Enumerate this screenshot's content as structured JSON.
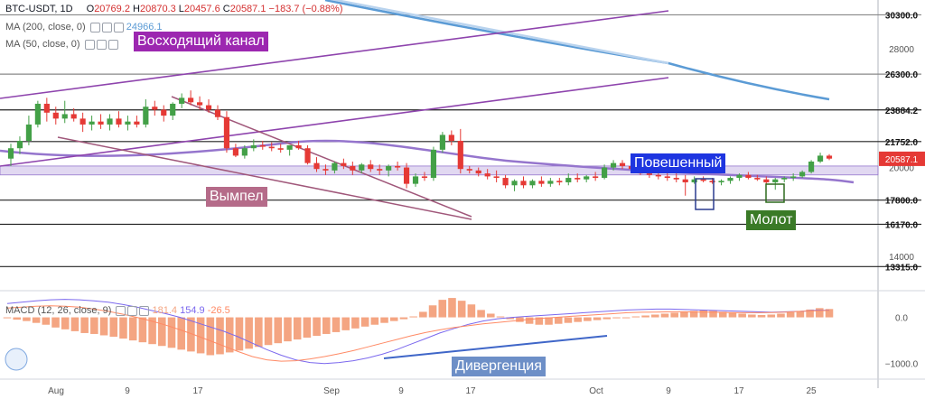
{
  "header": {
    "symbol": "BTC-USDT, 1D",
    "open_label": "O",
    "open": "20769.2",
    "high_label": "H",
    "high": "20870.3",
    "low_label": "L",
    "low": "20457.6",
    "close_label": "C",
    "close": "20587.1",
    "change": "−183.7 (−0.88%)",
    "ma200_label": "MA (200, close, 0)",
    "ma200_value": "24966.1",
    "ma50_label": "MA (50, close, 0)",
    "macd_label": "MACD (12, 26, close, 9)",
    "macd_values": [
      "181.4",
      "154.9",
      "-26.5"
    ]
  },
  "annotations": {
    "channel": "Восходящий канал",
    "pennant": "Вымпел",
    "hanging_man": "Повешенный",
    "hammer": "Молот",
    "divergence": "Дивергенция"
  },
  "colors": {
    "up": "#43a047",
    "down": "#e53935",
    "ma200": "#5b9bd5",
    "ma50": "#9575cd",
    "channel": "#8e44ad",
    "pennant": "#a0577a",
    "macd_hist": "#f4a582",
    "macd_line": "#7b68ee",
    "signal_line": "#ff8a65"
  },
  "chart_data": {
    "type": "candlestick",
    "price_axis": {
      "ticks": [
        14000,
        17800,
        20000,
        26300,
        28000,
        30300
      ],
      "ylim": [
        12300,
        31300
      ]
    },
    "levels": [
      {
        "price": 30300,
        "label": "30300.0"
      },
      {
        "price": 26300,
        "label": "26300.0"
      },
      {
        "price": 23884.2,
        "label": "23884.2"
      },
      {
        "price": 21752,
        "label": "21752.0"
      },
      {
        "price": 17800,
        "label": "17800.0"
      },
      {
        "price": 16170,
        "label": "16170.0"
      },
      {
        "price": 13315,
        "label": "13315.0"
      }
    ],
    "current_price": "20587.1",
    "x_labels": [
      "Aug",
      "9",
      "17",
      "Sep",
      "9",
      "17",
      "Oct",
      "9",
      "17",
      "25"
    ],
    "macd_axis": {
      "ticks": [
        "0.0",
        "−1000.0"
      ],
      "ylim": [
        -1300,
        500
      ]
    },
    "candles": [
      [
        20600,
        21600,
        20100,
        21300
      ],
      [
        21300,
        22100,
        20900,
        21800
      ],
      [
        21800,
        23500,
        21500,
        22900
      ],
      [
        22900,
        24500,
        22700,
        24300
      ],
      [
        24300,
        24700,
        23100,
        23700
      ],
      [
        23700,
        24100,
        22900,
        23300
      ],
      [
        23300,
        24500,
        23000,
        23600
      ],
      [
        23600,
        24000,
        23100,
        23300
      ],
      [
        23300,
        23700,
        22400,
        22900
      ],
      [
        22900,
        23500,
        22500,
        23100
      ],
      [
        23100,
        23600,
        22600,
        22900
      ],
      [
        22900,
        23600,
        22500,
        23300
      ],
      [
        23300,
        23800,
        22700,
        22900
      ],
      [
        22900,
        23500,
        22500,
        23100
      ],
      [
        23100,
        23500,
        22700,
        22900
      ],
      [
        22900,
        24600,
        22700,
        24100
      ],
      [
        24100,
        24500,
        23500,
        23900
      ],
      [
        23900,
        24200,
        23100,
        23500
      ],
      [
        23500,
        24400,
        23200,
        24300
      ],
      [
        24300,
        25000,
        24000,
        24700
      ],
      [
        24700,
        25200,
        24200,
        24400
      ],
      [
        24400,
        24800,
        23900,
        24200
      ],
      [
        24200,
        24600,
        23700,
        23900
      ],
      [
        23900,
        24200,
        23200,
        23400
      ],
      [
        23400,
        23800,
        21000,
        21300
      ],
      [
        21300,
        21600,
        20700,
        20800
      ],
      [
        20800,
        21500,
        20600,
        21300
      ],
      [
        21300,
        21900,
        21100,
        21500
      ],
      [
        21500,
        21800,
        21200,
        21400
      ],
      [
        21400,
        21700,
        21100,
        21300
      ],
      [
        21300,
        21600,
        21000,
        21200
      ],
      [
        21200,
        21500,
        20800,
        21500
      ],
      [
        21500,
        21800,
        21200,
        21300
      ],
      [
        21300,
        21500,
        20200,
        20300
      ],
      [
        20300,
        20700,
        19700,
        19900
      ],
      [
        19900,
        20200,
        19500,
        19800
      ],
      [
        19800,
        20400,
        19600,
        20300
      ],
      [
        20300,
        20600,
        19900,
        20100
      ],
      [
        20100,
        20400,
        19500,
        19800
      ],
      [
        19800,
        20300,
        19600,
        20200
      ],
      [
        20200,
        20500,
        19700,
        19900
      ],
      [
        19900,
        20200,
        19500,
        19800
      ],
      [
        19800,
        20200,
        19400,
        20100
      ],
      [
        20100,
        20400,
        19800,
        20000
      ],
      [
        20000,
        20300,
        18600,
        18900
      ],
      [
        18900,
        19600,
        18700,
        19400
      ],
      [
        19400,
        19700,
        19100,
        19300
      ],
      [
        19300,
        21400,
        19100,
        21200
      ],
      [
        21200,
        22400,
        21000,
        22200
      ],
      [
        22200,
        22500,
        21500,
        21800
      ],
      [
        21800,
        22600,
        19600,
        19900
      ],
      [
        19900,
        20100,
        19600,
        19800
      ],
      [
        19800,
        20000,
        19400,
        19600
      ],
      [
        19600,
        19900,
        19200,
        19400
      ],
      [
        19400,
        19800,
        19000,
        19300
      ],
      [
        19300,
        19500,
        18600,
        18800
      ],
      [
        18800,
        19200,
        18400,
        19100
      ],
      [
        19100,
        19400,
        18600,
        18800
      ],
      [
        18800,
        19200,
        18600,
        19100
      ],
      [
        19100,
        19400,
        18700,
        18900
      ],
      [
        18900,
        19300,
        18700,
        19100
      ],
      [
        19100,
        19300,
        18800,
        19000
      ],
      [
        19000,
        19600,
        18800,
        19300
      ],
      [
        19300,
        19600,
        19000,
        19200
      ],
      [
        19200,
        19500,
        19000,
        19400
      ],
      [
        19400,
        19700,
        19100,
        19300
      ],
      [
        19300,
        20200,
        19200,
        20000
      ],
      [
        20000,
        20500,
        19800,
        20300
      ],
      [
        20300,
        20500,
        19900,
        20100
      ],
      [
        20100,
        20300,
        19700,
        19900
      ],
      [
        19900,
        20100,
        19500,
        19600
      ],
      [
        19600,
        19800,
        19300,
        19500
      ],
      [
        19500,
        19700,
        19200,
        19400
      ],
      [
        19400,
        19700,
        19100,
        19300
      ],
      [
        19300,
        19600,
        19000,
        19200
      ],
      [
        19200,
        19500,
        18100,
        19000
      ],
      [
        19000,
        19400,
        18900,
        19200
      ],
      [
        19200,
        19400,
        19000,
        19100
      ],
      [
        19100,
        19300,
        18900,
        19000
      ],
      [
        19000,
        19200,
        18800,
        19100
      ],
      [
        19100,
        19400,
        18900,
        19300
      ],
      [
        19300,
        19600,
        19100,
        19500
      ],
      [
        19500,
        19700,
        19200,
        19300
      ],
      [
        19300,
        19500,
        19100,
        19200
      ],
      [
        19200,
        19400,
        18900,
        19000
      ],
      [
        19000,
        19300,
        18500,
        19200
      ],
      [
        19200,
        19400,
        19000,
        19300
      ],
      [
        19300,
        19600,
        19100,
        19400
      ],
      [
        19400,
        19800,
        19300,
        19700
      ],
      [
        19700,
        20500,
        19600,
        20400
      ],
      [
        20400,
        21000,
        20300,
        20800
      ],
      [
        20800,
        20900,
        20500,
        20600
      ]
    ],
    "macd_hist": [
      -20,
      -50,
      -80,
      -120,
      -160,
      -220,
      -260,
      -300,
      -340,
      -360,
      -390,
      -420,
      -460,
      -500,
      -540,
      -580,
      -620,
      -660,
      -700,
      -740,
      -780,
      -820,
      -800,
      -760,
      -720,
      -680,
      -640,
      -600,
      -560,
      -520,
      -480,
      -440,
      -400,
      -360,
      -320,
      -280,
      -240,
      -200,
      -160,
      -120,
      -80,
      -40,
      20,
      120,
      260,
      380,
      420,
      360,
      280,
      160,
      80,
      20,
      -40,
      -100,
      -140,
      -160,
      -160,
      -140,
      -120,
      -100,
      -80,
      -60,
      -40,
      -20,
      0,
      20,
      40,
      60,
      80,
      100,
      120,
      140,
      150,
      140,
      120,
      100,
      80,
      60,
      50,
      60,
      80,
      110,
      140,
      170,
      200,
      181
    ],
    "macd_line": [
      300,
      330,
      360,
      380,
      390,
      380,
      360,
      330,
      280,
      220,
      150,
      80,
      0,
      -100,
      -200,
      -300,
      -420,
      -560,
      -700,
      -820,
      -920,
      -980,
      -1000,
      -980,
      -940,
      -880,
      -800,
      -700,
      -580,
      -460,
      -340,
      -240,
      -150,
      -80,
      -30,
      0,
      20,
      40,
      60,
      80,
      100,
      120,
      140,
      160,
      170,
      180,
      180,
      170,
      160,
      150,
      140,
      130,
      120,
      110,
      120,
      130,
      150,
      155
    ],
    "signal_line": [
      200,
      220,
      240,
      250,
      240,
      220,
      180,
      130,
      70,
      0,
      -80,
      -170,
      -270,
      -380,
      -500,
      -620,
      -740,
      -850,
      -920,
      -950,
      -940,
      -900,
      -850,
      -790,
      -720,
      -640,
      -560,
      -480,
      -400,
      -330,
      -270,
      -220,
      -180,
      -140,
      -110,
      -80,
      -50,
      -20,
      0,
      20,
      40,
      60,
      80,
      100,
      110,
      115,
      120,
      120,
      115,
      110,
      105,
      100,
      100,
      105,
      115,
      130,
      140,
      150
    ]
  }
}
